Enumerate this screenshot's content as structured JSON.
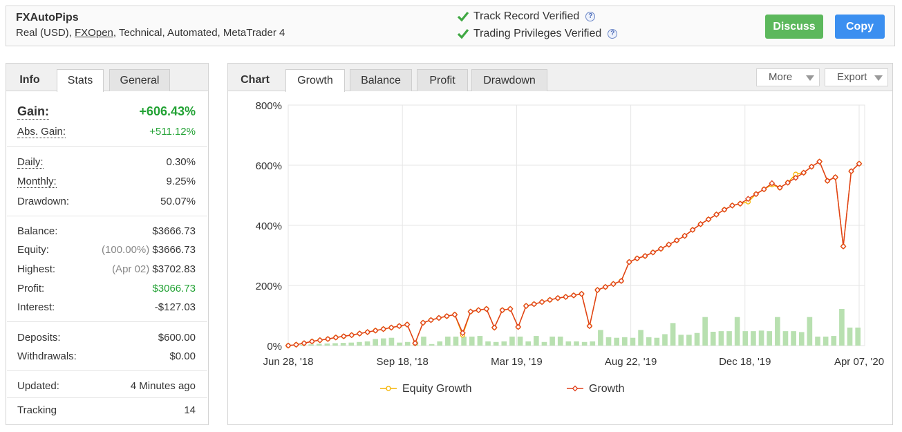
{
  "header": {
    "name": "FXAutoPips",
    "desc_prefix": "Real (USD), ",
    "desc_broker": "FXOpen",
    "desc_suffix": ", Technical, Automated, MetaTrader 4",
    "verification_1": "Track Record Verified",
    "verification_2": "Trading Privileges Verified",
    "discuss_label": "Discuss",
    "copy_label": "Copy"
  },
  "left_tabs": {
    "info": "Info",
    "stats": "Stats",
    "general": "General"
  },
  "stats": {
    "gain_label": "Gain:",
    "gain_value": "+606.43%",
    "abs_gain_label": "Abs. Gain:",
    "abs_gain_value": "+511.12%",
    "daily_label": "Daily:",
    "daily_value": "0.30%",
    "monthly_label": "Monthly:",
    "monthly_value": "9.25%",
    "drawdown_label": "Drawdown:",
    "drawdown_value": "50.07%",
    "balance_label": "Balance:",
    "balance_value": "$3666.73",
    "equity_label": "Equity:",
    "equity_pct": "(100.00%)",
    "equity_value": "$3666.73",
    "highest_label": "Highest:",
    "highest_date": "(Apr 02)",
    "highest_value": "$3702.83",
    "profit_label": "Profit:",
    "profit_value": "$3066.73",
    "interest_label": "Interest:",
    "interest_value": "-$127.03",
    "deposits_label": "Deposits:",
    "deposits_value": "$600.00",
    "withdrawals_label": "Withdrawals:",
    "withdrawals_value": "$0.00",
    "updated_label": "Updated:",
    "updated_value": "4 Minutes ago",
    "tracking_label": "Tracking",
    "tracking_value": "14"
  },
  "right_tabs": {
    "chart": "Chart",
    "growth": "Growth",
    "balance": "Balance",
    "profit": "Profit",
    "drawdown": "Drawdown",
    "more": "More",
    "export": "Export"
  },
  "colors": {
    "growth": "#e0401c",
    "equity": "#f5b400",
    "bars": "#b8e0b0",
    "green_btn": "#5cb85c",
    "blue_btn": "#3b8ff0"
  },
  "chart_data": {
    "type": "line",
    "ylim": [
      0,
      800
    ],
    "y_ticks": [
      "0%",
      "200%",
      "400%",
      "600%",
      "800%"
    ],
    "x_ticks": [
      "Jun 28, '18",
      "Sep 18, '18",
      "Mar 19, '19",
      "Aug 22, '19",
      "Dec 18, '19",
      "Apr 07, '20"
    ],
    "grid": true,
    "legend_placement": "bottom",
    "series": [
      {
        "name": "Growth",
        "values": [
          0,
          3,
          8,
          14,
          18,
          22,
          27,
          31,
          35,
          40,
          45,
          50,
          55,
          60,
          65,
          70,
          8,
          76,
          85,
          92,
          98,
          103,
          42,
          113,
          118,
          122,
          60,
          118,
          122,
          62,
          132,
          138,
          145,
          152,
          158,
          162,
          167,
          172,
          65,
          185,
          195,
          205,
          215,
          278,
          290,
          298,
          310,
          322,
          336,
          350,
          365,
          385,
          404,
          420,
          436,
          452,
          466,
          472,
          488,
          504,
          520,
          540,
          525,
          542,
          558,
          575,
          595,
          612,
          548,
          560,
          330,
          580,
          605
        ]
      },
      {
        "name": "Equity Growth",
        "values": [
          0,
          3,
          8,
          14,
          18,
          22,
          27,
          31,
          35,
          40,
          45,
          50,
          55,
          60,
          65,
          70,
          8,
          76,
          85,
          92,
          98,
          103,
          35,
          113,
          118,
          122,
          60,
          118,
          122,
          62,
          132,
          138,
          145,
          152,
          158,
          162,
          167,
          172,
          65,
          185,
          195,
          205,
          215,
          278,
          290,
          298,
          310,
          322,
          336,
          350,
          365,
          385,
          404,
          420,
          436,
          452,
          466,
          472,
          478,
          504,
          520,
          535,
          525,
          542,
          570,
          575,
          595,
          612,
          548,
          560,
          330,
          580,
          605
        ]
      }
    ],
    "bars": [
      2,
      3,
      4,
      6,
      7,
      8,
      9,
      10,
      12,
      14,
      22,
      24,
      26,
      10,
      12,
      14,
      30,
      5,
      14,
      30,
      30,
      30,
      30,
      32,
      14,
      12,
      14,
      30,
      30,
      14,
      32,
      12,
      30,
      30,
      14,
      14,
      12,
      14,
      52,
      28,
      26,
      28,
      26,
      52,
      28,
      26,
      38,
      75,
      36,
      36,
      42,
      95,
      46,
      48,
      48,
      95,
      48,
      48,
      50,
      48,
      95,
      48,
      48,
      45,
      95,
      30,
      30,
      32,
      122,
      60,
      60
    ]
  }
}
